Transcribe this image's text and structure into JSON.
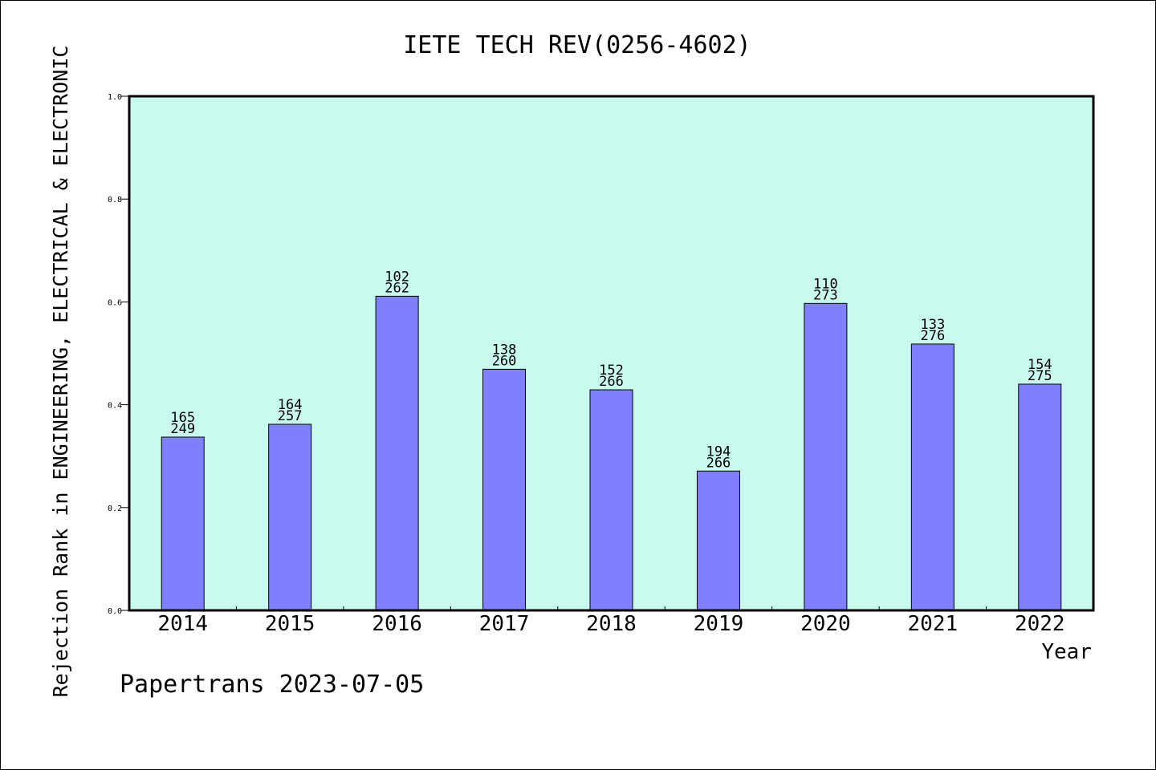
{
  "chart_data": {
    "type": "bar",
    "title": "IETE TECH REV(0256-4602)",
    "xlabel": "Year",
    "ylabel": "Rejection Rank in ENGINEERING, ELECTRICAL & ELECTRONIC",
    "watermark": "Papertrans 2023-07-05",
    "ylim": [
      0,
      1.0
    ],
    "yticks": [
      "0.0",
      "0.2",
      "0.4",
      "0.6",
      "0.8",
      "1.0"
    ],
    "categories": [
      "2014",
      "2015",
      "2016",
      "2017",
      "2018",
      "2019",
      "2020",
      "2021",
      "2022"
    ],
    "values": [
      0.337,
      0.362,
      0.611,
      0.469,
      0.429,
      0.271,
      0.597,
      0.518,
      0.44
    ],
    "rank": [
      "165",
      "164",
      "102",
      "138",
      "152",
      "194",
      "110",
      "133",
      "154"
    ],
    "total": [
      "249",
      "257",
      "262",
      "260",
      "266",
      "266",
      "273",
      "276",
      "275"
    ],
    "grid": false,
    "legend": "none"
  },
  "colors": {
    "plot_background": "#c8fbee",
    "bar_fill": "#8080ff",
    "bar_stroke": "#000000",
    "text": "#000000"
  }
}
